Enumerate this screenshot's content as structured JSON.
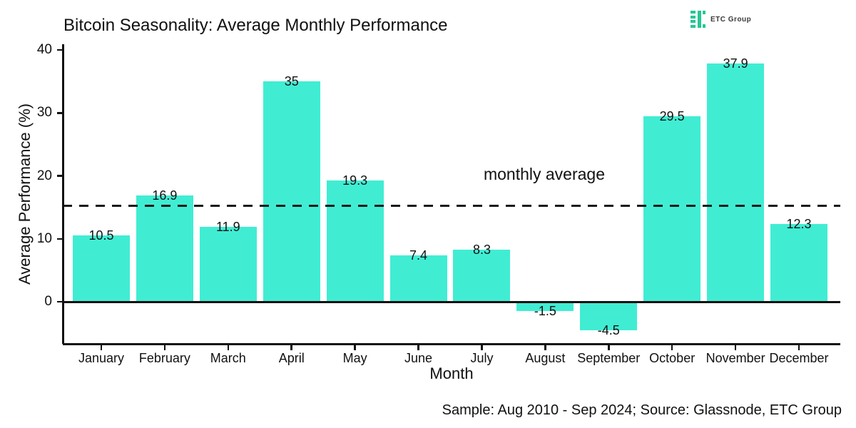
{
  "header": {
    "title": "Bitcoin Seasonality: Average Monthly Performance",
    "logo": {
      "icon": "etc-group-logo-icon",
      "text": "ETC Group"
    }
  },
  "caption": "Sample: Aug 2010 - Sep 2024; Source: Glassnode, ETC Group",
  "chart_data": {
    "type": "bar",
    "title": "Bitcoin Seasonality: Average Monthly Performance",
    "xlabel": "Month",
    "ylabel": "Average Performance (%)",
    "categories": [
      "January",
      "February",
      "March",
      "April",
      "May",
      "June",
      "July",
      "August",
      "September",
      "October",
      "November",
      "December"
    ],
    "values": [
      10.5,
      16.9,
      11.9,
      35,
      19.3,
      7.4,
      8.3,
      -1.5,
      -4.5,
      29.5,
      37.9,
      12.3
    ],
    "value_labels": [
      "10.5",
      "16.9",
      "11.9",
      "35",
      "19.3",
      "7.4",
      "8.3",
      "-1.5",
      "-4.5",
      "29.5",
      "37.9",
      "12.3"
    ],
    "yticks": [
      0,
      10,
      20,
      30,
      40
    ],
    "ylim": [
      -6.7,
      40.9
    ],
    "grid": false,
    "legend": "none",
    "bar_color": "#40edd3",
    "axis_color": "#111111",
    "reference_line": {
      "value": 15.25,
      "label": "monthly average",
      "style": "dashed",
      "color": "#1a1a1a"
    }
  }
}
